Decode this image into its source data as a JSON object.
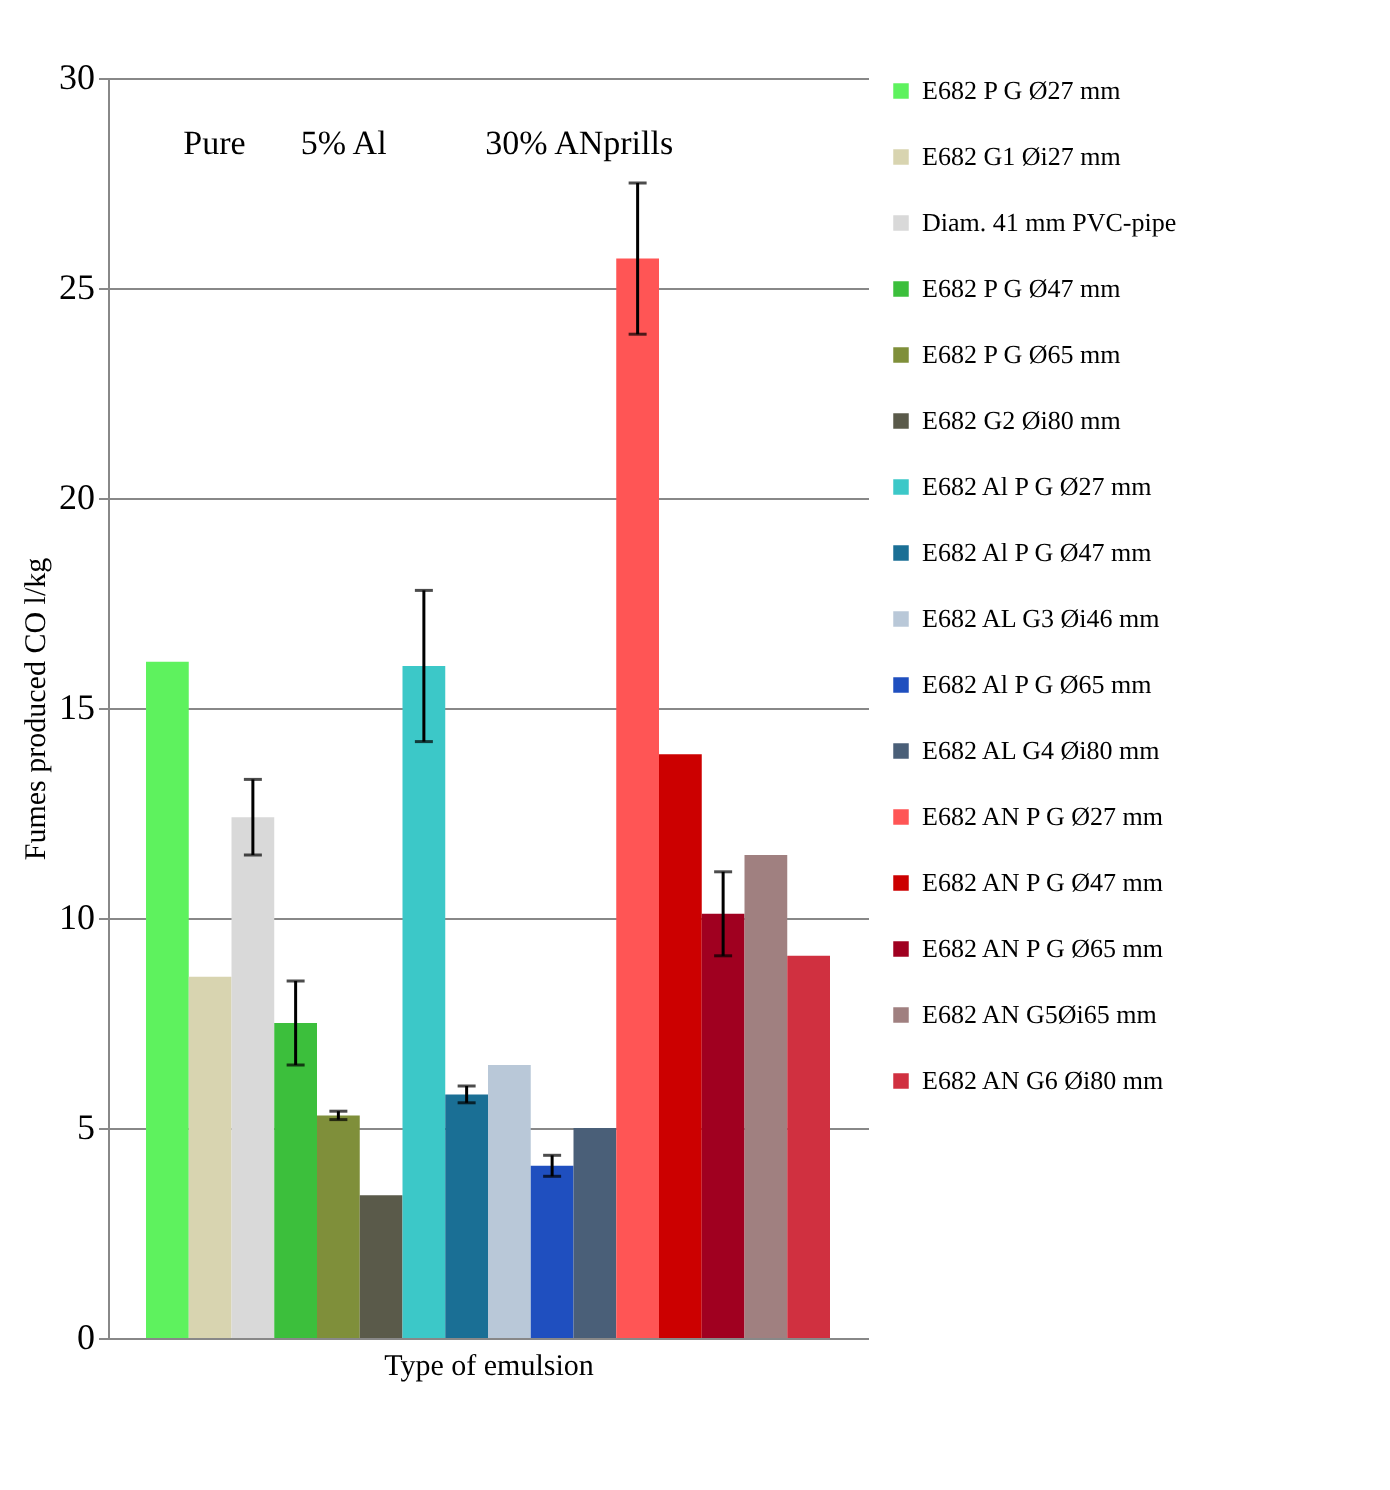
{
  "chart_data": {
    "type": "bar",
    "ylabel": "Fumes produced CO l/kg",
    "xlabel": "Type of emulsion",
    "categories": [
      null
    ],
    "series": [
      {
        "name": "E682 P G Ø27 mm",
        "color": "#5ef25e",
        "values": [
          16.1
        ]
      },
      {
        "name": "E682 G1 Øi27 mm",
        "color": "#d8d4b0",
        "values": [
          8.6
        ]
      },
      {
        "name": "Diam. 41 mm PVC-pipe",
        "color": "#d9d9d9",
        "values": [
          12.4
        ],
        "errors": [
          0.9
        ]
      },
      {
        "name": "E682 P G Ø47 mm",
        "color": "#3cbf3c",
        "values": [
          7.5
        ],
        "errors": [
          1.0
        ]
      },
      {
        "name": "E682 P G Ø65 mm",
        "color": "#7f8f3a",
        "values": [
          5.3
        ],
        "errors": [
          0.1
        ]
      },
      {
        "name": "E682 G2 Øi80 mm",
        "color": "#5a5a4a",
        "values": [
          3.4
        ]
      },
      {
        "name": "E682 Al P G Ø27 mm",
        "color": "#3cc8c8",
        "values": [
          16.0
        ],
        "errors": [
          1.8
        ]
      },
      {
        "name": "E682 Al P G Ø47 mm",
        "color": "#1a6f95",
        "values": [
          5.8
        ],
        "errors": [
          0.2
        ]
      },
      {
        "name": "E682 AL G3 Øi46 mm",
        "color": "#b9c8d8",
        "values": [
          6.5
        ]
      },
      {
        "name": "E682 Al P G Ø65 mm",
        "color": "#1f4fbf",
        "values": [
          4.1
        ],
        "errors": [
          0.25
        ]
      },
      {
        "name": "E682 AL G4 Øi80 mm",
        "color": "#4a5f78",
        "values": [
          5.0
        ]
      },
      {
        "name": "E682 AN P G Ø27 mm",
        "color": "#ff5555",
        "values": [
          25.7
        ],
        "errors": [
          1.8
        ]
      },
      {
        "name": "E682 AN P G Ø47 mm",
        "color": "#cc0000",
        "values": [
          13.9
        ]
      },
      {
        "name": "E682 AN P G Ø65 mm",
        "color": "#a00020",
        "values": [
          10.1
        ],
        "errors": [
          1.0
        ]
      },
      {
        "name": "E682 AN G5Øi65 mm",
        "color": "#a08080",
        "values": [
          11.5
        ]
      },
      {
        "name": "E682 AN G6 Øi80 mm",
        "color": "#d03040",
        "values": [
          9.1
        ]
      }
    ],
    "ylim": [
      0,
      30
    ],
    "yticks": [
      0,
      5,
      10,
      15,
      20,
      25,
      30
    ],
    "grid": "y",
    "legend": "right",
    "annotations": [
      "Pure",
      "5% Al",
      "30% ANprills"
    ]
  }
}
